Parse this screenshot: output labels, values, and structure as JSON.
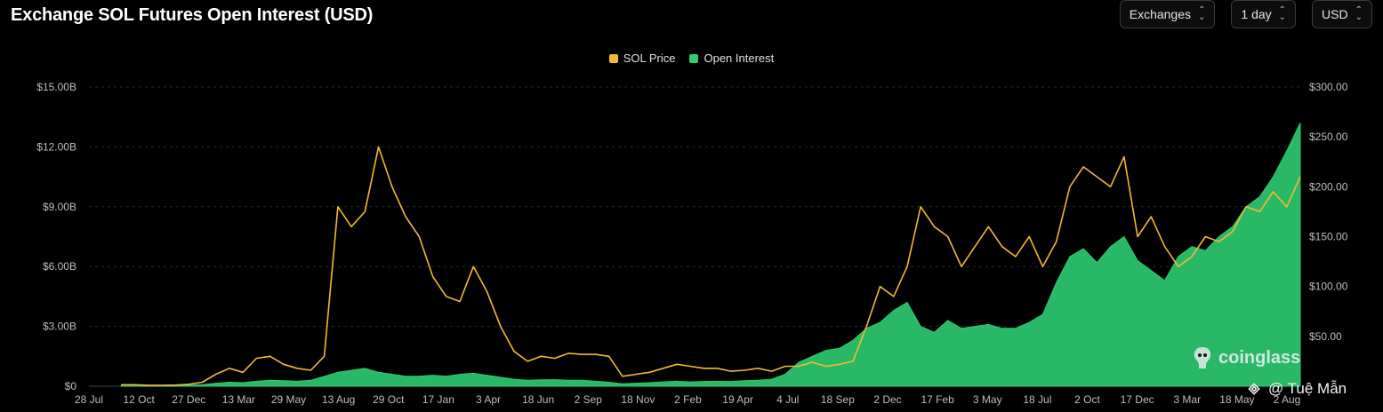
{
  "title": "Exchange SOL Futures Open Interest (USD)",
  "controls": {
    "exchanges": "Exchanges",
    "interval": "1 day",
    "currency": "USD",
    "chevron": "⌃⌄"
  },
  "watermark": {
    "icon": "coinglass-logo-icon",
    "text": "coinglass"
  },
  "credit": {
    "icon": "binance-square-icon",
    "text": "@ Tuệ Mẫn"
  },
  "colors": {
    "price": "#f3ba2f",
    "oi": "#2ecc71",
    "grid": "#2a2a2a",
    "background": "#000000"
  },
  "chart_data": {
    "type": "line",
    "grid": true,
    "legend_position": "top-center",
    "series": [
      {
        "name": "SOL Price",
        "axis": "right",
        "style": "line",
        "values": [
          1.5,
          1.5,
          1.0,
          1.0,
          1.2,
          2.0,
          4.0,
          12,
          18,
          14,
          28,
          30,
          22,
          18,
          16,
          30,
          180,
          160,
          175,
          240,
          200,
          170,
          150,
          110,
          90,
          85,
          120,
          95,
          60,
          35,
          25,
          30,
          28,
          33,
          32,
          32,
          30,
          10,
          12,
          14,
          18,
          22,
          20,
          18,
          18,
          15,
          16,
          18,
          15,
          20,
          20,
          24,
          20,
          22,
          25,
          60,
          100,
          90,
          120,
          180,
          160,
          150,
          120,
          140,
          160,
          140,
          130,
          150,
          120,
          145,
          200,
          220,
          210,
          200,
          230,
          150,
          170,
          140,
          120,
          130,
          150,
          145,
          155,
          180,
          175,
          195,
          180,
          210
        ]
      },
      {
        "name": "Open Interest",
        "axis": "left",
        "style": "area",
        "values": [
          0.02,
          0.02,
          0.02,
          0.02,
          0.03,
          0.05,
          0.08,
          0.15,
          0.2,
          0.18,
          0.25,
          0.3,
          0.28,
          0.25,
          0.3,
          0.5,
          0.7,
          0.8,
          0.9,
          0.7,
          0.6,
          0.5,
          0.5,
          0.55,
          0.5,
          0.6,
          0.65,
          0.55,
          0.45,
          0.35,
          0.3,
          0.32,
          0.33,
          0.3,
          0.3,
          0.25,
          0.2,
          0.12,
          0.15,
          0.18,
          0.22,
          0.25,
          0.22,
          0.24,
          0.25,
          0.24,
          0.28,
          0.3,
          0.35,
          0.6,
          1.2,
          1.5,
          1.8,
          1.9,
          2.3,
          2.9,
          3.2,
          3.8,
          4.2,
          3.0,
          2.7,
          3.3,
          2.9,
          3.0,
          3.1,
          2.9,
          2.9,
          3.2,
          3.6,
          5.2,
          6.5,
          6.9,
          6.2,
          7.0,
          7.5,
          6.3,
          5.8,
          5.3,
          6.5,
          7.0,
          6.8,
          7.5,
          8.0,
          9.0,
          9.5,
          10.5,
          11.8,
          13.2
        ]
      }
    ],
    "x_tick_labels": [
      "28 Jul",
      "12 Oct",
      "27 Dec",
      "13 Mar",
      "29 May",
      "13 Aug",
      "29 Oct",
      "17 Jan",
      "3 Apr",
      "18 Jun",
      "2 Sep",
      "18 Nov",
      "2 Feb",
      "19 Apr",
      "4 Jul",
      "18 Sep",
      "2 Dec",
      "17 Feb",
      "3 May",
      "18 Jul",
      "2 Oct",
      "17 Dec",
      "3 Mar",
      "18 May",
      "2 Aug"
    ],
    "y_left": {
      "min": 0,
      "max": 15,
      "ticks": [
        0,
        3,
        6,
        9,
        12,
        15
      ],
      "tick_labels": [
        "$0",
        "$3.00B",
        "$6.00B",
        "$9.00B",
        "$12.00B",
        "$15.00B"
      ]
    },
    "y_right": {
      "min": 0,
      "max": 300,
      "ticks": [
        50,
        100,
        150,
        200,
        250,
        300
      ],
      "tick_labels": [
        "$50.00",
        "$100.00",
        "$150.00",
        "$200.00",
        "$250.00",
        "$300.00"
      ]
    }
  }
}
